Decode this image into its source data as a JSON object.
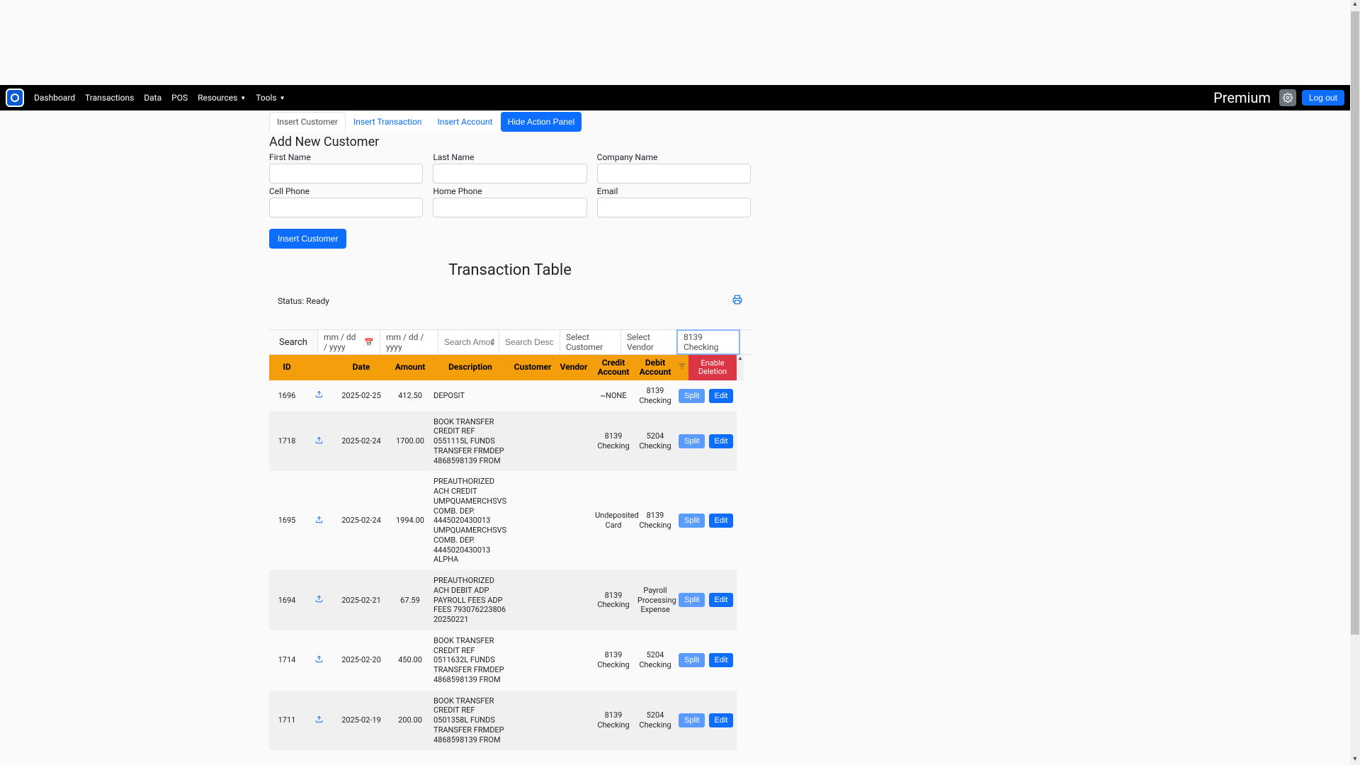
{
  "nav": {
    "links": [
      "Dashboard",
      "Transactions",
      "Data",
      "POS",
      "Resources",
      "Tools"
    ],
    "dropdown_flags": [
      false,
      false,
      false,
      false,
      true,
      true
    ],
    "premium": "Premium",
    "logout": "Log out"
  },
  "tabs": {
    "items": [
      "Insert Customer",
      "Insert Transaction",
      "Insert Account"
    ],
    "active_index": 0,
    "hide_panel": "Hide Action Panel"
  },
  "panel": {
    "title": "Add New Customer",
    "fields": {
      "first_name": "First Name",
      "last_name": "Last Name",
      "company_name": "Company Name",
      "cell_phone": "Cell Phone",
      "home_phone": "Home Phone",
      "email": "Email"
    },
    "submit": "Insert Customer"
  },
  "table": {
    "title": "Transaction Table",
    "status_label": "Status: Ready",
    "search": {
      "label": "Search",
      "date1_placeholder": "mm / dd / yyyy",
      "date2_placeholder": "mm / dd / yyyy",
      "amount_placeholder": "Search Amount",
      "desc_placeholder": "Search Description",
      "customer_placeholder": "Select Customer",
      "vendor_placeholder": "Select Vendor",
      "account_selected": "8139 Checking"
    },
    "columns": [
      "ID",
      "",
      "Date",
      "Amount",
      "Description",
      "Customer",
      "Vendor",
      "Credit Account",
      "Debit Account",
      "",
      ""
    ],
    "enable_deletion": "Enable Deletion",
    "split_label": "Split",
    "edit_label": "Edit",
    "rows": [
      {
        "id": "1696",
        "date": "2025-02-25",
        "amount": "412.50",
        "desc": "DEPOSIT",
        "customer": "",
        "vendor": "",
        "credit": "~NONE",
        "debit": "8139 Checking"
      },
      {
        "id": "1718",
        "date": "2025-02-24",
        "amount": "1700.00",
        "desc": "BOOK TRANSFER CREDIT REF 0551115L FUNDS TRANSFER FRMDEP 4868598139 FROM",
        "customer": "",
        "vendor": "",
        "credit": "8139 Checking",
        "debit": "5204 Checking"
      },
      {
        "id": "1695",
        "date": "2025-02-24",
        "amount": "1994.00",
        "desc": "PREAUTHORIZED ACH CREDIT UMPQUAMERCHSVS COMB. DEP. 4445020430013 UMPQUAMERCHSVS COMB. DEP. 4445020430013 ALPHA",
        "customer": "",
        "vendor": "",
        "credit": "Undeposited Card",
        "debit": "8139 Checking"
      },
      {
        "id": "1694",
        "date": "2025-02-21",
        "amount": "67.59",
        "desc": "PREAUTHORIZED ACH DEBIT ADP PAYROLL FEES ADP FEES 793076223806 20250221",
        "customer": "",
        "vendor": "",
        "credit": "8139 Checking",
        "debit": "Payroll Processing Expense"
      },
      {
        "id": "1714",
        "date": "2025-02-20",
        "amount": "450.00",
        "desc": "BOOK TRANSFER CREDIT REF 0511632L FUNDS TRANSFER FRMDEP 4868598139 FROM",
        "customer": "",
        "vendor": "",
        "credit": "8139 Checking",
        "debit": "5204 Checking"
      },
      {
        "id": "1711",
        "date": "2025-02-19",
        "amount": "200.00",
        "desc": "BOOK TRANSFER CREDIT REF 0501358L FUNDS TRANSFER FRMDEP 4868598139 FROM",
        "customer": "",
        "vendor": "",
        "credit": "8139 Checking",
        "debit": "5204 Checking"
      }
    ]
  },
  "colors": {
    "navbar_bg": "#000000",
    "primary": "#0d6efd",
    "split_btn": "#5b9bff",
    "danger": "#dc3545",
    "header_bg": "#f59e0b",
    "row_alt": "#f0f0f0",
    "border": "#dee2e6"
  }
}
